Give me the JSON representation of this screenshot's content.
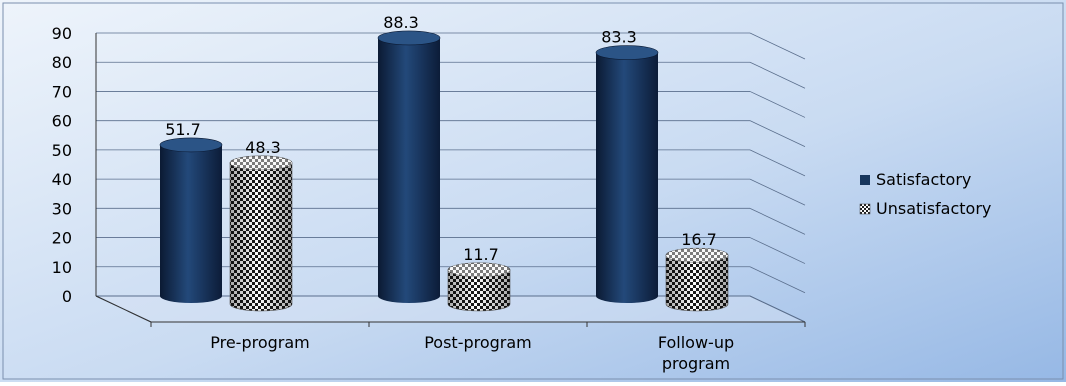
{
  "chart_data": {
    "type": "bar",
    "title": "",
    "xlabel": "",
    "ylabel": "",
    "ylim": [
      0,
      90
    ],
    "yticks": [
      "0",
      "10",
      "20",
      "30",
      "40",
      "50",
      "60",
      "70",
      "80",
      "90"
    ],
    "categories": [
      [
        "Pre-program"
      ],
      [
        "Post-program"
      ],
      [
        "Follow-up",
        "program"
      ]
    ],
    "series": [
      {
        "name": "Satisfactory",
        "values": [
          51.7,
          88.3,
          83.3
        ],
        "labels": [
          "51.7",
          "88.3",
          "83.3"
        ],
        "color": "#17365d"
      },
      {
        "name": "Unsatisfactory",
        "values": [
          48.3,
          11.7,
          16.7
        ],
        "labels": [
          "48.3",
          "11.7",
          "16.7"
        ],
        "color": "#ffffff"
      }
    ],
    "grid": true,
    "legend_position": "right",
    "style": "3d-cylinder"
  },
  "colors": {
    "background_top": "#eef4fb",
    "background_bottom": "#9bbce6",
    "grid": "#5a6e8c",
    "axis_text": "#000000"
  }
}
